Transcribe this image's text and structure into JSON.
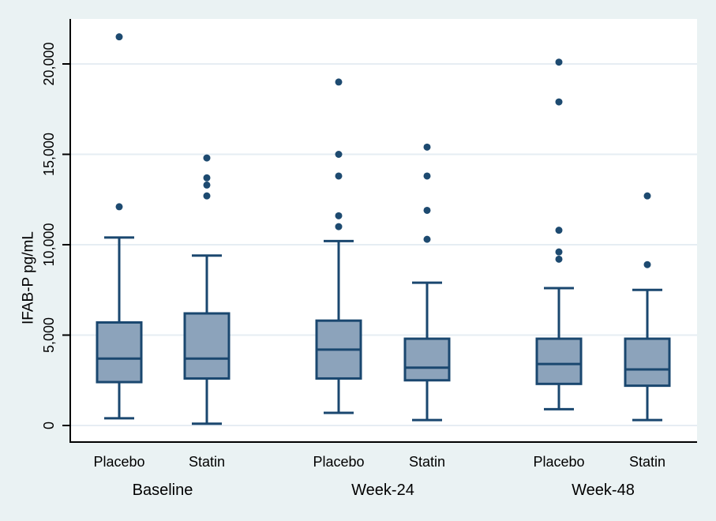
{
  "figure": {
    "title": "",
    "ylabel": "IFAB-P pg/mL",
    "colors": {
      "background": "#eaf2f3",
      "plot_background": "#ffffff",
      "gridline": "#e6edf3",
      "axis_line": "#000000",
      "box_fill": "#8ca3bb",
      "box_stroke": "#1a476f",
      "outlier_fill": "#1d4a70",
      "text": "#000000"
    }
  },
  "chart_data": {
    "type": "box",
    "title": "",
    "xlabel": "",
    "ylabel": "IFAB-P pg/mL",
    "ylim": [
      0,
      22500
    ],
    "yticks": [
      0,
      5000,
      10000,
      15000,
      20000
    ],
    "ytick_labels": [
      "0",
      "5,000",
      "10,000",
      "15,000",
      "20,000"
    ],
    "grid": "horizontal",
    "legend": "none",
    "groups": [
      {
        "label": "Baseline",
        "boxes": [
          {
            "label": "Placebo",
            "whislo": 400,
            "q1": 2400,
            "med": 3700,
            "q3": 5700,
            "whishi": 10400,
            "outliers": [
              12100,
              21500
            ]
          },
          {
            "label": "Statin",
            "whislo": 100,
            "q1": 2600,
            "med": 3700,
            "q3": 6200,
            "whishi": 9400,
            "outliers": [
              12700,
              13300,
              13700,
              14800
            ]
          }
        ]
      },
      {
        "label": "Week-24",
        "boxes": [
          {
            "label": "Placebo",
            "whislo": 700,
            "q1": 2600,
            "med": 4200,
            "q3": 5800,
            "whishi": 10200,
            "outliers": [
              11000,
              11600,
              13800,
              15000,
              19000
            ]
          },
          {
            "label": "Statin",
            "whislo": 300,
            "q1": 2500,
            "med": 3200,
            "q3": 4800,
            "whishi": 7900,
            "outliers": [
              10300,
              11900,
              13800,
              15400
            ]
          }
        ]
      },
      {
        "label": "Week-48",
        "boxes": [
          {
            "label": "Placebo",
            "whislo": 900,
            "q1": 2300,
            "med": 3400,
            "q3": 4800,
            "whishi": 7600,
            "outliers": [
              9200,
              9600,
              10800,
              17900,
              20100
            ]
          },
          {
            "label": "Statin",
            "whislo": 300,
            "q1": 2200,
            "med": 3100,
            "q3": 4800,
            "whishi": 7500,
            "outliers": [
              8900,
              12700
            ]
          }
        ]
      }
    ]
  }
}
